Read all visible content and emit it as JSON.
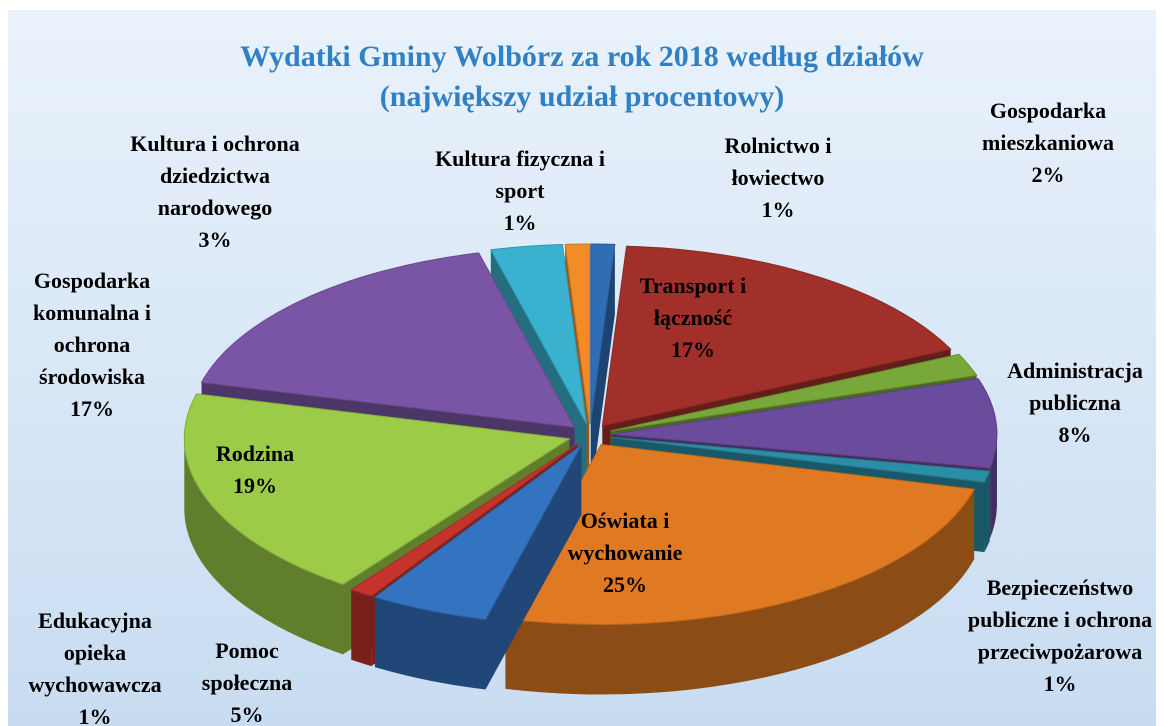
{
  "chart_data": {
    "type": "pie",
    "title": "Wydatki Gminy Wolbórz za rok 2018 według działów",
    "subtitle": "(największy udział procentowy)",
    "categories": [
      "Rolnictwo i łowiectwo",
      "Transport i łączność",
      "Gospodarka mieszkaniowa",
      "Administracja publiczna",
      "Bezpieczeństwo publiczne i ochrona przeciwpożarowa",
      "Oświata i wychowanie",
      "Pomoc społeczna",
      "Edukacyjna opieka wychowawcza",
      "Rodzina",
      "Gospodarka komunalna i ochrona środowiska",
      "Kultura i ochrona dziedzictwa narodowego",
      "Kultura fizyczna i sport"
    ],
    "values": [
      1,
      17,
      2,
      8,
      1,
      25,
      5,
      1,
      19,
      17,
      3,
      1
    ],
    "value_labels": [
      "1%",
      "17%",
      "2%",
      "8%",
      "1%",
      "25%",
      "5%",
      "1%",
      "19%",
      "17%",
      "3%",
      "1%"
    ],
    "colors": [
      "#2f6db5",
      "#a2302a",
      "#78a83a",
      "#6b4b9c",
      "#2b8ea6",
      "#e07a22",
      "#3473c0",
      "#c5342c",
      "#9ccb48",
      "#7a55a6",
      "#3ab2cf",
      "#f28c26"
    ]
  }
}
